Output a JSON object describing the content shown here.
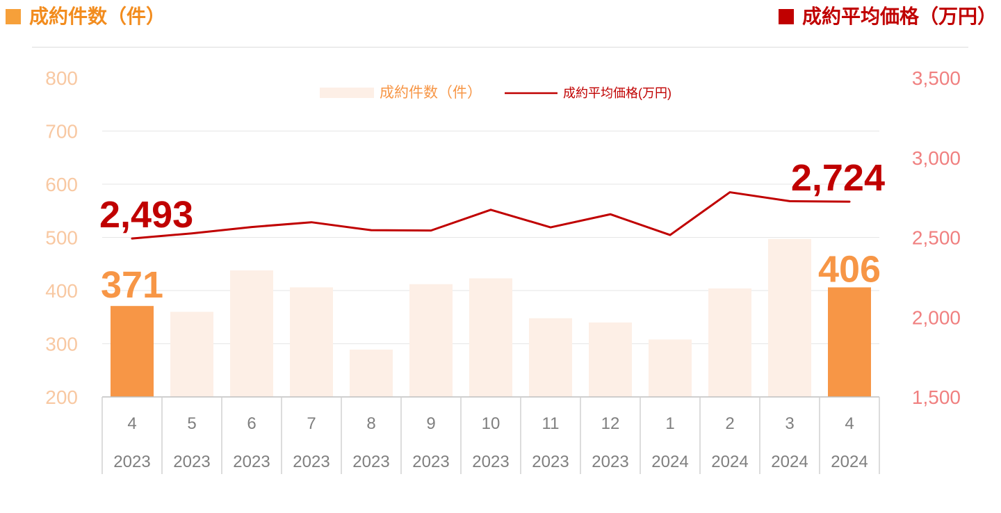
{
  "header": {
    "left_label": "成約件数（件）",
    "right_label": "成約平均価格（万円）"
  },
  "colors": {
    "bar_highlight": "#F79646",
    "bar_normal": "#FDEFE6",
    "line": "#C00000",
    "left_axis_text": "#F8C8A2",
    "right_axis_text": "#F08080",
    "left_header_text": "#F28C1E",
    "right_header_text": "#C00000",
    "grid": "#E6E6E6",
    "category_text": "#7F7F7F"
  },
  "chart_data": {
    "type": "bar",
    "categories": [
      "4",
      "5",
      "6",
      "7",
      "8",
      "9",
      "10",
      "11",
      "12",
      "1",
      "2",
      "3",
      "4"
    ],
    "years": [
      "2023",
      "2023",
      "2023",
      "2023",
      "2023",
      "2023",
      "2023",
      "2023",
      "2023",
      "2024",
      "2024",
      "2024",
      "2024"
    ],
    "series": [
      {
        "name": "成約件数（件）",
        "type": "bar",
        "axis": "left",
        "values": [
          371,
          360,
          438,
          406,
          289,
          412,
          423,
          348,
          340,
          308,
          404,
          497,
          406
        ],
        "highlight_indices": [
          0,
          12
        ]
      },
      {
        "name": "成約平均価格(万円)",
        "type": "line",
        "axis": "right",
        "values": [
          2493,
          2525,
          2565,
          2595,
          2545,
          2543,
          2673,
          2563,
          2645,
          2515,
          2783,
          2727,
          2724
        ]
      }
    ],
    "left_axis": {
      "ylim": [
        200,
        800
      ],
      "ticks": [
        "200",
        "300",
        "400",
        "500",
        "600",
        "700",
        "800"
      ]
    },
    "right_axis": {
      "ylim": [
        1500,
        3500
      ],
      "ticks": [
        "1,500",
        "2,000",
        "2,500",
        "3,000",
        "3,500"
      ]
    },
    "annotations": {
      "bar_first": "371",
      "bar_last": "406",
      "line_first": "2,493",
      "line_last": "2,724"
    },
    "legend": {
      "position": "top-center",
      "bar_label": "成約件数（件）",
      "line_label": "成約平均価格(万円)"
    },
    "grid": true
  }
}
